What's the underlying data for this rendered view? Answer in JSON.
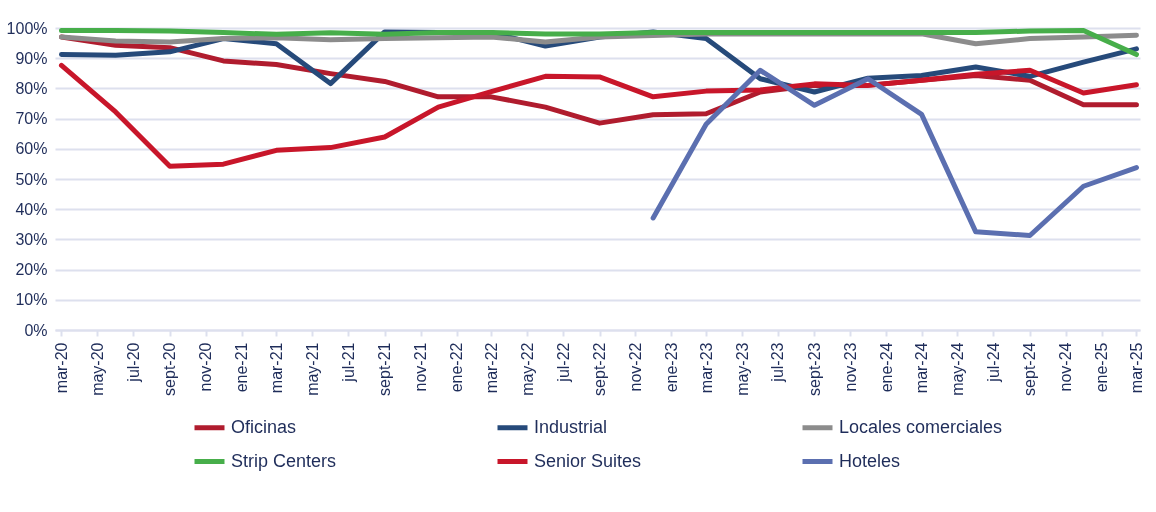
{
  "chart_data": {
    "type": "line",
    "x": [
      "2020-03",
      "2020-06",
      "2020-09",
      "2020-12",
      "2021-03",
      "2021-06",
      "2021-09",
      "2021-12",
      "2022-03",
      "2022-06",
      "2022-09",
      "2022-12",
      "2023-03",
      "2023-06",
      "2023-09",
      "2023-12",
      "2024-03",
      "2024-06",
      "2024-09",
      "2024-12",
      "2025-03"
    ],
    "series": [
      {
        "name": "Oficinas",
        "color": "#b01c2e",
        "values": [
          97.0,
          94.3,
          93.5,
          89.1,
          87.9,
          84.9,
          82.3,
          77.2,
          77.2,
          73.8,
          68.5,
          71.3,
          71.6,
          78.8,
          81.0,
          81.0,
          82.7,
          84.3,
          82.7,
          74.6,
          74.6
        ]
      },
      {
        "name": "Industrial",
        "color": "#264a7a",
        "values": [
          91.2,
          91.0,
          92.1,
          96.5,
          94.8,
          81.6,
          98.7,
          98.5,
          98.5,
          94.0,
          97.0,
          98.7,
          96.5,
          83.2,
          78.8,
          83.4,
          84.3,
          87.1,
          84.0,
          88.7,
          93.1
        ]
      },
      {
        "name": "Locales comerciales",
        "color": "#8c8c8c",
        "values": [
          97.0,
          95.7,
          95.4,
          96.5,
          96.8,
          96.1,
          96.5,
          96.8,
          97.0,
          95.4,
          97.0,
          97.5,
          98.0,
          98.0,
          98.0,
          98.0,
          98.1,
          94.8,
          96.5,
          97.0,
          97.6
        ]
      },
      {
        "name": "Strip Centers",
        "color": "#47ae4a",
        "values": [
          99.2,
          99.2,
          99.0,
          98.5,
          97.9,
          98.4,
          97.9,
          98.5,
          98.5,
          98.0,
          98.0,
          98.5,
          98.5,
          98.5,
          98.5,
          98.5,
          98.5,
          98.5,
          99.0,
          99.2,
          91.2
        ]
      },
      {
        "name": "Senior Suites",
        "color": "#c8162a",
        "values": [
          87.6,
          72.2,
          54.2,
          54.9,
          59.5,
          60.4,
          63.9,
          73.8,
          78.9,
          84.0,
          83.8,
          77.2,
          79.1,
          79.5,
          81.5,
          81.0,
          82.7,
          84.7,
          86.0,
          78.5,
          81.2
        ]
      },
      {
        "name": "Hoteles",
        "color": "#5b6fb0",
        "values": [
          null,
          null,
          null,
          null,
          null,
          null,
          null,
          null,
          null,
          null,
          null,
          37.1,
          68.1,
          86.0,
          74.4,
          83.2,
          71.4,
          32.5,
          31.3,
          47.6,
          53.8
        ]
      }
    ],
    "xlim": [
      "2020-02-19",
      "2025-03-07"
    ],
    "xticks": [
      {
        "value": "2020-03",
        "label": "mar-20"
      },
      {
        "value": "2020-05",
        "label": "may-20"
      },
      {
        "value": "2020-07",
        "label": "jul-20"
      },
      {
        "value": "2020-09",
        "label": "sept-20"
      },
      {
        "value": "2020-11",
        "label": "nov-20"
      },
      {
        "value": "2021-01",
        "label": "ene-21"
      },
      {
        "value": "2021-03",
        "label": "mar-21"
      },
      {
        "value": "2021-05",
        "label": "may-21"
      },
      {
        "value": "2021-07",
        "label": "jul-21"
      },
      {
        "value": "2021-09",
        "label": "sept-21"
      },
      {
        "value": "2021-11",
        "label": "nov-21"
      },
      {
        "value": "2022-01",
        "label": "ene-22"
      },
      {
        "value": "2022-03",
        "label": "mar-22"
      },
      {
        "value": "2022-05",
        "label": "may-22"
      },
      {
        "value": "2022-07",
        "label": "jul-22"
      },
      {
        "value": "2022-09",
        "label": "sept-22"
      },
      {
        "value": "2022-11",
        "label": "nov-22"
      },
      {
        "value": "2023-01",
        "label": "ene-23"
      },
      {
        "value": "2023-03",
        "label": "mar-23"
      },
      {
        "value": "2023-05",
        "label": "may-23"
      },
      {
        "value": "2023-07",
        "label": "jul-23"
      },
      {
        "value": "2023-09",
        "label": "sept-23"
      },
      {
        "value": "2023-11",
        "label": "nov-23"
      },
      {
        "value": "2024-01",
        "label": "ene-24"
      },
      {
        "value": "2024-03",
        "label": "mar-24"
      },
      {
        "value": "2024-05",
        "label": "may-24"
      },
      {
        "value": "2024-07",
        "label": "jul-24"
      },
      {
        "value": "2024-09",
        "label": "sept-24"
      },
      {
        "value": "2024-11",
        "label": "nov-24"
      },
      {
        "value": "2025-01",
        "label": "ene-25"
      },
      {
        "value": "2025-03",
        "label": "mar-25"
      }
    ],
    "ylim": [
      0,
      100
    ],
    "yticks": [
      {
        "value": 0,
        "label": "0%"
      },
      {
        "value": 10,
        "label": "10%"
      },
      {
        "value": 20,
        "label": "20%"
      },
      {
        "value": 30,
        "label": "30%"
      },
      {
        "value": 40,
        "label": "40%"
      },
      {
        "value": 50,
        "label": "50%"
      },
      {
        "value": 60,
        "label": "60%"
      },
      {
        "value": 70,
        "label": "70%"
      },
      {
        "value": 80,
        "label": "80%"
      },
      {
        "value": 90,
        "label": "90%"
      },
      {
        "value": 100,
        "label": "100%"
      }
    ],
    "grid": "y",
    "legend": "bottom",
    "line_style": "solid"
  }
}
